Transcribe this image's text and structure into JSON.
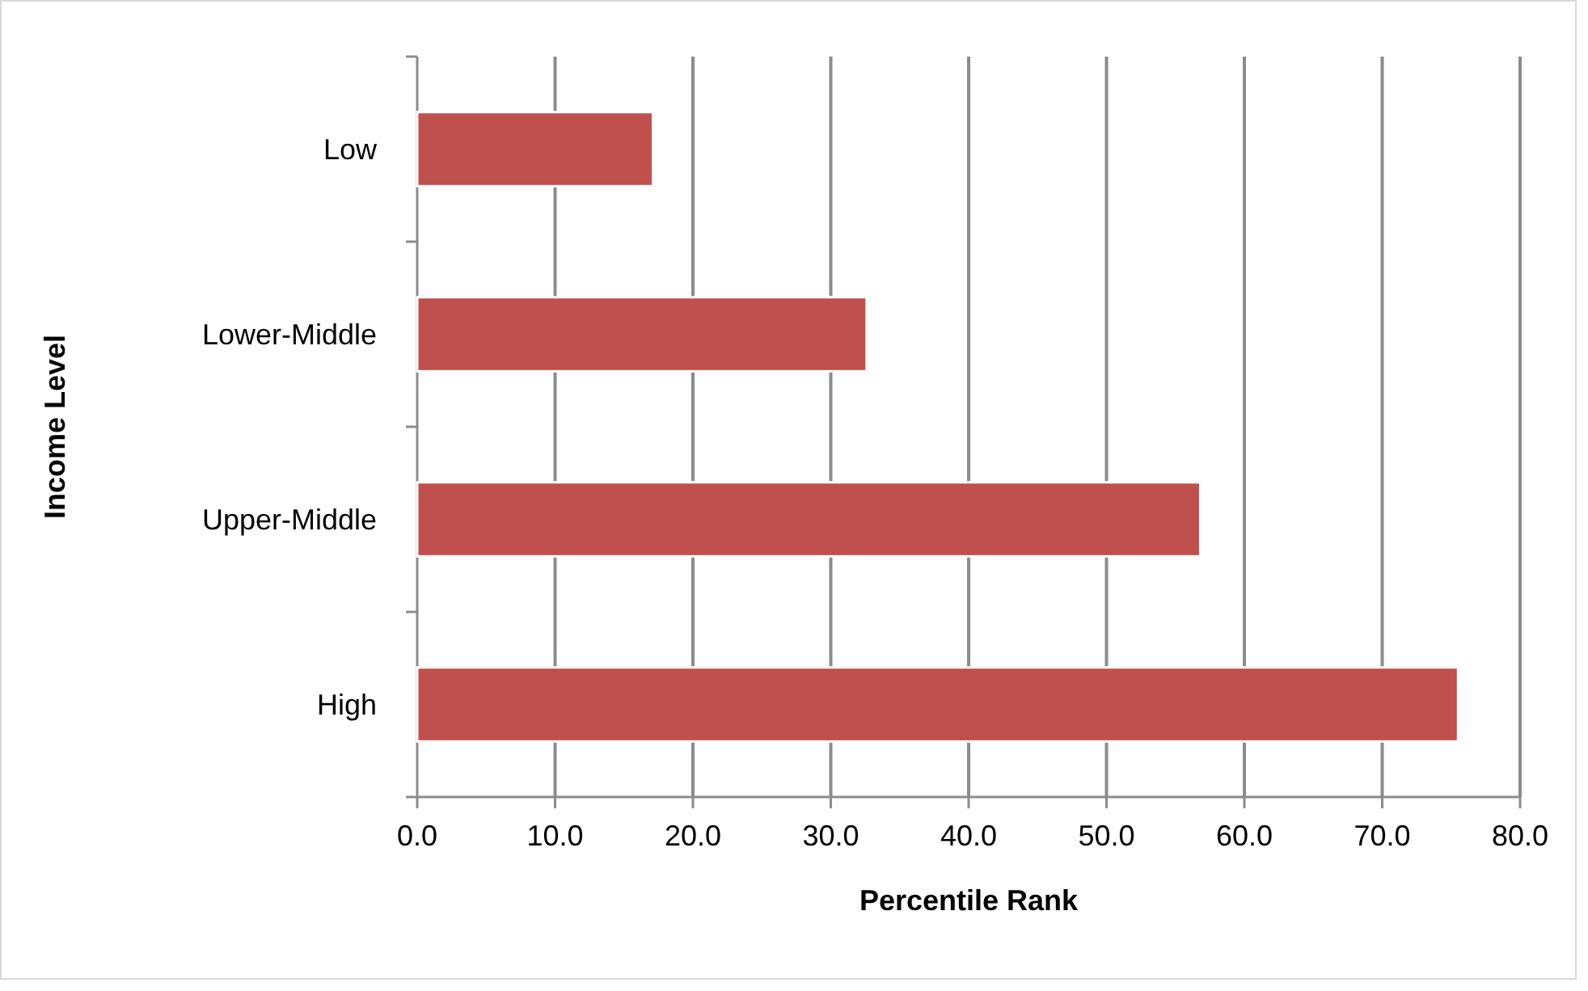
{
  "chart_data": {
    "type": "bar",
    "orientation": "horizontal",
    "xlabel": "Percentile Rank",
    "ylabel": "Income Level",
    "categories": [
      "Low",
      "Lower-Middle",
      "Upper-Middle",
      "High"
    ],
    "values": [
      17.1,
      32.6,
      56.8,
      75.5
    ],
    "color": "#c0504d",
    "xlim": [
      0,
      80
    ],
    "xticks": [
      {
        "value": 0,
        "label": "0.0"
      },
      {
        "value": 10,
        "label": "10.0"
      },
      {
        "value": 20,
        "label": "20.0"
      },
      {
        "value": 30,
        "label": "30.0"
      },
      {
        "value": 40,
        "label": "40.0"
      },
      {
        "value": 50,
        "label": "50.0"
      },
      {
        "value": 60,
        "label": "60.0"
      },
      {
        "value": 70,
        "label": "70.0"
      },
      {
        "value": 80,
        "label": "80.0"
      }
    ],
    "grid": "x"
  }
}
